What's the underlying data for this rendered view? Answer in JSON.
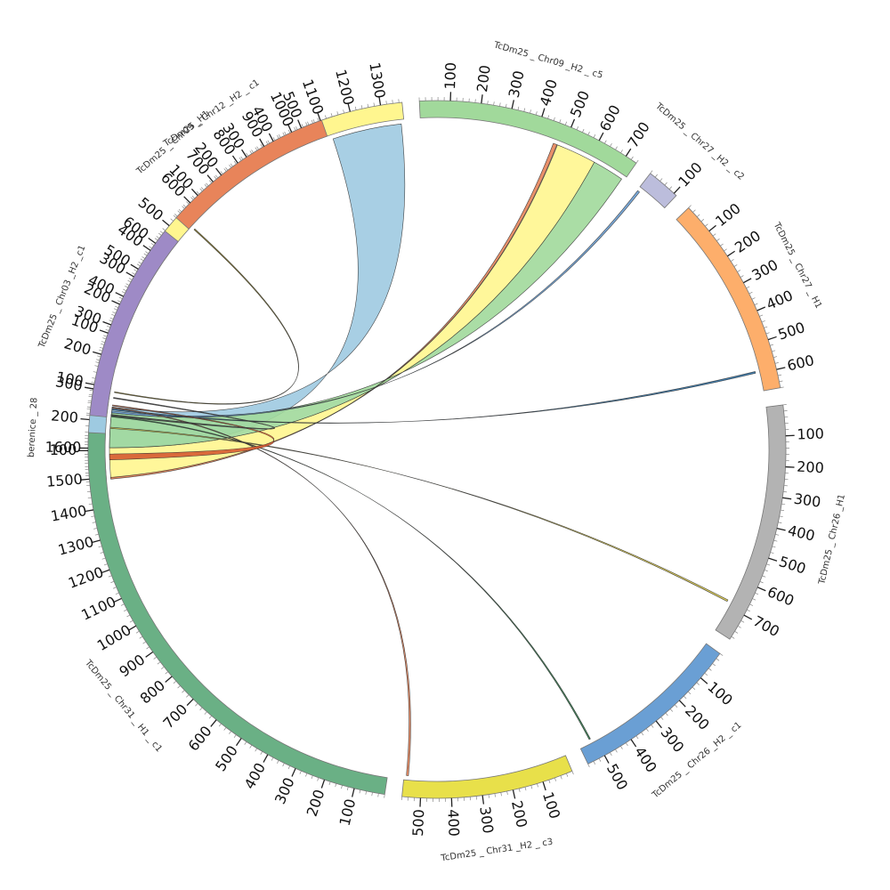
{
  "chart_data": {
    "type": "chord",
    "segments": [
      {
        "id": "berenice",
        "name": "berenice _ 28",
        "length": 330,
        "color": "#9ecae1",
        "ticks": [
          100,
          200,
          300
        ]
      },
      {
        "id": "chr09h1",
        "name": "TcDm25 _ Chr09 _H1",
        "length": 1370,
        "color": "#fff68f",
        "ticks": [
          100,
          200,
          300,
          400,
          500,
          600,
          700,
          800,
          900,
          1000,
          1100,
          1200,
          1300
        ]
      },
      {
        "id": "chr09h2c5",
        "name": "TcDm25 _ Chr09 _H2 _ c5",
        "length": 740,
        "color": "#a1d99b",
        "ticks": [
          100,
          200,
          300,
          400,
          500,
          600,
          700
        ]
      },
      {
        "id": "chr27h2c2",
        "name": "TcDm25 _ Chr27 _H2 _ c2",
        "length": 110,
        "color": "#bcbddc",
        "ticks": [
          100
        ]
      },
      {
        "id": "chr27h1",
        "name": "TcDm25 _ Chr27 _ H1",
        "length": 660,
        "color": "#fdae6b",
        "ticks": [
          100,
          200,
          300,
          400,
          500,
          600
        ]
      },
      {
        "id": "chr26h1",
        "name": "TcDm25 _ Chr26 _H1",
        "length": 790,
        "color": "#b3b3b3",
        "ticks": [
          100,
          200,
          300,
          400,
          500,
          600,
          700
        ]
      },
      {
        "id": "chr26h2c1",
        "name": "TcDm25 _ Chr26 _H2 _ c1",
        "length": 560,
        "color": "#6a9fd4",
        "ticks": [
          100,
          200,
          300,
          400,
          500
        ]
      },
      {
        "id": "chr31h2c3",
        "name": "TcDm25 _ Chr31 _H2 _ c3",
        "length": 560,
        "color": "#e8e04a",
        "ticks": [
          100,
          200,
          300,
          400,
          500
        ]
      },
      {
        "id": "chr31h1c1",
        "name": "TcDm25 _ Chr31 _ H1 _ c1",
        "length": 1650,
        "color": "#6ab085",
        "ticks": [
          100,
          200,
          300,
          400,
          500,
          600,
          700,
          800,
          900,
          1000,
          1100,
          1200,
          1300,
          1400,
          1500,
          1600
        ]
      },
      {
        "id": "chr03h2c1",
        "name": "TcDm25 _ Chr03 _H2 _c1",
        "length": 650,
        "color": "#9e8ac6",
        "ticks": [
          100,
          200,
          300,
          400,
          500,
          600
        ]
      },
      {
        "id": "chr12h2c1",
        "name": "TcDm25 _ Chr12 _H2 _ c1",
        "length": 570,
        "color": "#e8845a",
        "ticks": [
          100,
          200,
          300,
          400,
          500
        ]
      }
    ],
    "links": [
      {
        "from": "berenice",
        "from_range": [
          110,
          250
        ],
        "to": "chr09h1",
        "to_range": [
          1120,
          1360
        ],
        "color": "#9ecae1"
      },
      {
        "from": "berenice",
        "from_range": [
          5,
          110
        ],
        "to": "chr09h2c5",
        "to_range": [
          480,
          620
        ],
        "color": "#fff68f"
      },
      {
        "from": "berenice",
        "from_range": [
          110,
          230
        ],
        "to": "chr09h2c5",
        "to_range": [
          620,
          730
        ],
        "color": "#a1d99b"
      },
      {
        "from": "berenice",
        "from_range": [
          2,
          8
        ],
        "to": "chr09h2c5",
        "to_range": [
          465,
          478
        ],
        "color": "#e8845a"
      },
      {
        "from": "berenice",
        "from_range": [
          230,
          236
        ],
        "to": "chr27h2c2",
        "to_range": [
          2,
          10
        ],
        "color": "#6a9fd4"
      },
      {
        "from": "berenice",
        "from_range": [
          240,
          244
        ],
        "to": "chr27h1",
        "to_range": [
          590,
          596
        ],
        "color": "#2c6fa3"
      },
      {
        "from": "berenice",
        "from_range": [
          176,
          180
        ],
        "to": "chr26h1",
        "to_range": [
          680,
          686
        ],
        "color": "#d4c34a"
      },
      {
        "from": "berenice",
        "from_range": [
          216,
          219
        ],
        "to": "chr26h2c1",
        "to_range": [
          515,
          520
        ],
        "color": "#2f7a4a"
      },
      {
        "from": "berenice",
        "from_range": [
          246,
          249
        ],
        "to": "chr31h2c3",
        "to_range": [
          545,
          552
        ],
        "color": "#e8845a"
      },
      {
        "from": "berenice",
        "from_range": [
          254,
          257
        ],
        "to": "chr31h1c1",
        "to_range": [
          1560,
          1580
        ],
        "color": "#d65a31"
      },
      {
        "from": "berenice",
        "from_range": [
          280,
          283
        ],
        "to": "chr03h2c1",
        "to_range": [
          5,
          10
        ],
        "color": "#444444"
      },
      {
        "from": "berenice",
        "from_range": [
          300,
          303
        ],
        "to": "chr12h2c1",
        "to_range": [
          10,
          14
        ],
        "color": "#8a7a20"
      }
    ]
  }
}
